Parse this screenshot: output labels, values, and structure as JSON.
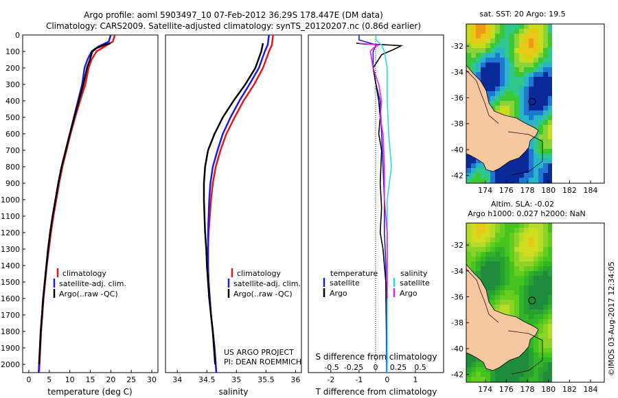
{
  "header": {
    "line1": "Argo profile: aoml 5903497_10 07-Feb-2012 36.29S 178.447E (DM data)",
    "line2": "Climatology: CARS2009. Satellite-adjusted climatology: synTS_20120207.nc (0.86d earlier)"
  },
  "colors": {
    "climatology": "#e8141a",
    "satellite": "#1a1ae6",
    "argo": "#000000",
    "satellite_salinity": "#22dde6",
    "argo_salinity": "#e61ee6",
    "land": "#f7c8a0"
  },
  "depth_axis": {
    "min": 0,
    "max": 2050,
    "reversed": true,
    "ticks": [
      0,
      100,
      200,
      300,
      400,
      500,
      600,
      700,
      800,
      900,
      1000,
      1100,
      1200,
      1300,
      1400,
      1500,
      1600,
      1700,
      1800,
      1900,
      2000
    ]
  },
  "chart_data": [
    {
      "type": "line",
      "id": "temperature",
      "xlabel": "temperature (deg C)",
      "xlim": [
        -1.5,
        31.5
      ],
      "xticks": [
        0,
        5,
        10,
        15,
        20,
        25,
        30
      ],
      "legend": {
        "placement": "bottom-center",
        "entries": [
          "climatology",
          "satellite-adj. clim.",
          "Argo(..raw -QC)"
        ]
      },
      "series": [
        {
          "name": "climatology",
          "color": "#e8141a",
          "points": [
            [
              21.0,
              0
            ],
            [
              20.5,
              40
            ],
            [
              18.5,
              70
            ],
            [
              16.5,
              100
            ],
            [
              15.3,
              150
            ],
            [
              14.6,
              200
            ],
            [
              13.8,
              300
            ],
            [
              12.5,
              400
            ],
            [
              11.3,
              500
            ],
            [
              10.2,
              600
            ],
            [
              9.2,
              700
            ],
            [
              8.2,
              800
            ],
            [
              7.4,
              900
            ],
            [
              6.7,
              1000
            ],
            [
              6.0,
              1100
            ],
            [
              5.4,
              1200
            ],
            [
              4.9,
              1300
            ],
            [
              4.4,
              1400
            ],
            [
              4.0,
              1500
            ],
            [
              3.6,
              1600
            ],
            [
              3.3,
              1700
            ],
            [
              3.0,
              1800
            ],
            [
              2.8,
              1900
            ],
            [
              2.6,
              2000
            ],
            [
              2.5,
              2050
            ]
          ]
        },
        {
          "name": "satellite-adj. clim.",
          "color": "#1a1ae6",
          "points": [
            [
              20.0,
              0
            ],
            [
              19.5,
              40
            ],
            [
              17.0,
              70
            ],
            [
              15.3,
              100
            ],
            [
              14.3,
              150
            ],
            [
              13.6,
              200
            ],
            [
              13.0,
              300
            ],
            [
              12.0,
              400
            ],
            [
              11.0,
              500
            ],
            [
              10.0,
              600
            ],
            [
              9.0,
              700
            ],
            [
              8.0,
              800
            ],
            [
              7.2,
              900
            ],
            [
              6.5,
              1000
            ],
            [
              5.8,
              1100
            ],
            [
              5.2,
              1200
            ],
            [
              4.7,
              1300
            ],
            [
              4.3,
              1400
            ],
            [
              3.9,
              1500
            ],
            [
              3.5,
              1600
            ],
            [
              3.2,
              1700
            ],
            [
              2.9,
              1800
            ],
            [
              2.7,
              1900
            ],
            [
              2.5,
              2000
            ],
            [
              2.4,
              2050
            ]
          ]
        },
        {
          "name": "Argo(..raw -QC)",
          "color": "#000000",
          "points": [
            [
              19.9,
              50
            ],
            [
              18.5,
              60
            ],
            [
              16.5,
              80
            ],
            [
              15.5,
              100
            ],
            [
              14.9,
              150
            ],
            [
              14.2,
              200
            ],
            [
              13.3,
              300
            ],
            [
              12.2,
              400
            ],
            [
              11.1,
              500
            ],
            [
              10.0,
              600
            ],
            [
              9.0,
              700
            ],
            [
              8.0,
              800
            ],
            [
              7.2,
              900
            ],
            [
              6.5,
              1000
            ],
            [
              5.8,
              1100
            ],
            [
              5.2,
              1200
            ],
            [
              4.7,
              1300
            ],
            [
              4.3,
              1400
            ],
            [
              3.9,
              1500
            ],
            [
              3.5,
              1600
            ],
            [
              3.2,
              1700
            ],
            [
              2.9,
              1800
            ],
            [
              2.7,
              1900
            ],
            [
              2.5,
              2000
            ]
          ]
        }
      ]
    },
    {
      "type": "line",
      "id": "salinity",
      "xlabel": "salinity",
      "xlim": [
        33.8,
        36.1
      ],
      "xticks": [
        34,
        34.5,
        35,
        35.5,
        36
      ],
      "legend": {
        "placement": "bottom-center",
        "entries": [
          "climatology",
          "satellite-adj. clim.",
          "Argo(..raw -QC)"
        ]
      },
      "annotations": [
        "US ARGO PROJECT",
        "PI: DEAN ROEMMICH"
      ],
      "series": [
        {
          "name": "climatology",
          "color": "#e8141a",
          "points": [
            [
              35.62,
              0
            ],
            [
              35.6,
              60
            ],
            [
              35.55,
              100
            ],
            [
              35.45,
              200
            ],
            [
              35.3,
              300
            ],
            [
              35.12,
              400
            ],
            [
              34.97,
              500
            ],
            [
              34.83,
              600
            ],
            [
              34.73,
              700
            ],
            [
              34.65,
              800
            ],
            [
              34.6,
              900
            ],
            [
              34.57,
              1000
            ],
            [
              34.55,
              1100
            ],
            [
              34.53,
              1200
            ],
            [
              34.52,
              1300
            ],
            [
              34.52,
              1400
            ],
            [
              34.53,
              1500
            ],
            [
              34.55,
              1600
            ],
            [
              34.57,
              1700
            ],
            [
              34.6,
              1800
            ],
            [
              34.63,
              1900
            ],
            [
              34.65,
              2000
            ],
            [
              34.66,
              2050
            ]
          ]
        },
        {
          "name": "satellite-adj. clim.",
          "color": "#1a1ae6",
          "points": [
            [
              35.55,
              0
            ],
            [
              35.53,
              60
            ],
            [
              35.48,
              100
            ],
            [
              35.38,
              200
            ],
            [
              35.22,
              300
            ],
            [
              35.05,
              400
            ],
            [
              34.9,
              500
            ],
            [
              34.77,
              600
            ],
            [
              34.68,
              700
            ],
            [
              34.6,
              800
            ],
            [
              34.56,
              900
            ],
            [
              34.54,
              1000
            ],
            [
              34.53,
              1100
            ],
            [
              34.52,
              1200
            ],
            [
              34.52,
              1300
            ],
            [
              34.52,
              1400
            ],
            [
              34.53,
              1500
            ],
            [
              34.55,
              1600
            ],
            [
              34.57,
              1700
            ],
            [
              34.6,
              1800
            ],
            [
              34.63,
              1900
            ],
            [
              34.65,
              2000
            ],
            [
              34.66,
              2050
            ]
          ]
        },
        {
          "name": "Argo(..raw -QC)",
          "color": "#000000",
          "points": [
            [
              35.45,
              50
            ],
            [
              35.42,
              100
            ],
            [
              35.32,
              200
            ],
            [
              35.15,
              300
            ],
            [
              34.95,
              400
            ],
            [
              34.77,
              500
            ],
            [
              34.63,
              600
            ],
            [
              34.52,
              700
            ],
            [
              34.47,
              800
            ],
            [
              34.45,
              900
            ],
            [
              34.45,
              1000
            ],
            [
              34.46,
              1100
            ],
            [
              34.47,
              1200
            ],
            [
              34.49,
              1300
            ],
            [
              34.5,
              1400
            ],
            [
              34.52,
              1500
            ],
            [
              34.54,
              1600
            ],
            [
              34.57,
              1700
            ],
            [
              34.6,
              1800
            ],
            [
              34.62,
              1900
            ],
            [
              34.64,
              2000
            ]
          ]
        }
      ]
    },
    {
      "type": "line",
      "id": "difference",
      "xlabel": "T difference from climatology",
      "xlim": [
        -2.8,
        2.0
      ],
      "xticks": [
        -2,
        -1,
        0,
        1
      ],
      "secondary_axis": {
        "label": "S difference from climatology",
        "ticks": [
          "-0.5",
          "-0.25",
          "0",
          "0.25",
          "0.5"
        ]
      },
      "legend_titles": {
        "temperature": "temperature",
        "salinity": "salinity"
      },
      "legend_entries": {
        "t_satellite": "satellite",
        "t_argo": "Argo",
        "s_satellite": "satellite",
        "s_argo": "Argo"
      },
      "series": [
        {
          "name": "temperature satellite",
          "color": "#1a1ae6",
          "points": [
            [
              -1.0,
              0
            ],
            [
              -1.0,
              30
            ],
            [
              -0.4,
              60
            ],
            [
              -0.5,
              100
            ],
            [
              -0.5,
              150
            ],
            [
              -0.5,
              200
            ],
            [
              -0.4,
              300
            ],
            [
              -0.25,
              400
            ],
            [
              -0.2,
              600
            ],
            [
              -0.15,
              800
            ],
            [
              -0.1,
              1000
            ],
            [
              -0.1,
              1200
            ],
            [
              -0.05,
              1400
            ],
            [
              -0.05,
              1600
            ],
            [
              -0.03,
              1800
            ],
            [
              -0.02,
              2050
            ]
          ]
        },
        {
          "name": "temperature Argo",
          "color": "#000000",
          "points": [
            [
              -1.1,
              50
            ],
            [
              -0.8,
              55
            ],
            [
              -0.2,
              58
            ],
            [
              0.5,
              65
            ],
            [
              0.2,
              90
            ],
            [
              -0.2,
              120
            ],
            [
              -0.5,
              200
            ],
            [
              -0.4,
              300
            ],
            [
              -0.3,
              400
            ],
            [
              -0.25,
              500
            ],
            [
              -0.3,
              600
            ],
            [
              -0.2,
              700
            ],
            [
              -0.25,
              900
            ],
            [
              -0.2,
              1050
            ],
            [
              -0.25,
              1200
            ],
            [
              -0.15,
              1300
            ],
            [
              -0.1,
              1400
            ],
            [
              -0.05,
              1500
            ],
            [
              -0.02,
              1600
            ],
            [
              0.0,
              2000
            ]
          ]
        },
        {
          "name": "salinity satellite",
          "color": "#22dde6",
          "points": [
            [
              -0.4,
              0
            ],
            [
              -0.4,
              30
            ],
            [
              -0.2,
              60
            ],
            [
              -0.1,
              100
            ],
            [
              0.0,
              200
            ],
            [
              0.0,
              400
            ],
            [
              0.05,
              600
            ],
            [
              0.15,
              800
            ],
            [
              0.0,
              1000
            ],
            [
              0.0,
              1200
            ],
            [
              0.0,
              1400
            ],
            [
              0.0,
              2050
            ]
          ]
        },
        {
          "name": "salinity Argo",
          "color": "#e61ee6",
          "points": [
            [
              -1.0,
              50
            ],
            [
              -0.3,
              60
            ],
            [
              -0.5,
              80
            ],
            [
              -0.6,
              100
            ],
            [
              -0.5,
              200
            ],
            [
              -0.3,
              300
            ],
            [
              -0.2,
              400
            ],
            [
              -0.25,
              500
            ],
            [
              -0.15,
              600
            ],
            [
              -0.1,
              800
            ],
            [
              -0.1,
              1000
            ],
            [
              0.0,
              1200
            ],
            [
              0.0,
              1400
            ],
            [
              0.0,
              1600
            ]
          ]
        }
      ]
    },
    {
      "type": "heatmap",
      "id": "sst_map",
      "title": "sat. SST: 20 Argo: 19.5",
      "xticks": [
        174,
        176,
        178,
        180,
        182,
        184
      ],
      "yticks": [
        -32,
        -34,
        -36,
        -38,
        -40,
        -42
      ],
      "xlim": [
        172.2,
        185.3
      ],
      "ylim": [
        -42.6,
        -30.3
      ],
      "float_position": [
        178.447,
        -36.29
      ]
    },
    {
      "type": "heatmap",
      "id": "sla_map",
      "title": "Altim. SLA: -0.02",
      "subtitle": "Argo h1000: 0.027 h2000: NaN",
      "xticks": [
        174,
        176,
        178,
        180,
        182,
        184
      ],
      "yticks": [
        -32,
        -34,
        -36,
        -38,
        -40,
        -42
      ],
      "xlim": [
        172.2,
        185.3
      ],
      "ylim": [
        -42.6,
        -30.3
      ],
      "float_position": [
        178.447,
        -36.29
      ]
    }
  ],
  "side_label": "©IMOS 03-Aug-2017 12:34:05"
}
